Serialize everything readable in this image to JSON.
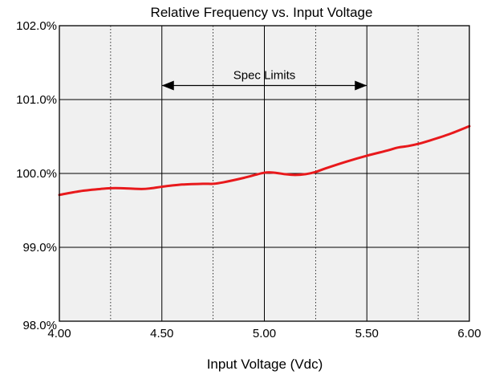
{
  "chart_data": {
    "type": "line",
    "title": "Relative Frequency vs. Input Voltage",
    "xlabel": "Input Voltage (Vdc)",
    "ylabel": "",
    "xlim": [
      4.0,
      6.0
    ],
    "ylim": [
      98.0,
      102.0
    ],
    "x_ticks": [
      4.0,
      4.5,
      5.0,
      5.5,
      6.0
    ],
    "x_tick_labels": [
      "4.00",
      "4.50",
      "5.00",
      "5.50",
      "6.00"
    ],
    "x_minor_ticks": [
      4.25,
      4.75,
      5.25,
      5.75
    ],
    "y_ticks": [
      98.0,
      99.0,
      100.0,
      101.0,
      102.0
    ],
    "y_tick_labels": [
      "98.0%",
      "99.0%",
      "100.0%",
      "101.0%",
      "102.0%"
    ],
    "grid": true,
    "plot_background": "#f0f0f0",
    "series": [
      {
        "color": "#e8191c",
        "points": [
          [
            4.0,
            99.71
          ],
          [
            4.1,
            99.76
          ],
          [
            4.2,
            99.79
          ],
          [
            4.25,
            99.8
          ],
          [
            4.3,
            99.8
          ],
          [
            4.4,
            99.79
          ],
          [
            4.45,
            99.8
          ],
          [
            4.5,
            99.82
          ],
          [
            4.6,
            99.85
          ],
          [
            4.7,
            99.86
          ],
          [
            4.75,
            99.86
          ],
          [
            4.8,
            99.88
          ],
          [
            4.9,
            99.94
          ],
          [
            5.0,
            100.01
          ],
          [
            5.05,
            100.01
          ],
          [
            5.1,
            99.99
          ],
          [
            5.15,
            99.98
          ],
          [
            5.2,
            99.99
          ],
          [
            5.25,
            100.02
          ],
          [
            5.3,
            100.07
          ],
          [
            5.4,
            100.16
          ],
          [
            5.5,
            100.24
          ],
          [
            5.6,
            100.31
          ],
          [
            5.65,
            100.35
          ],
          [
            5.7,
            100.37
          ],
          [
            5.75,
            100.4
          ],
          [
            5.8,
            100.44
          ],
          [
            5.9,
            100.53
          ],
          [
            6.0,
            100.64
          ]
        ]
      }
    ],
    "annotations": [
      {
        "text": "Spec Limits",
        "x_from": 4.5,
        "x_to": 5.5,
        "y": 101.19
      }
    ]
  }
}
